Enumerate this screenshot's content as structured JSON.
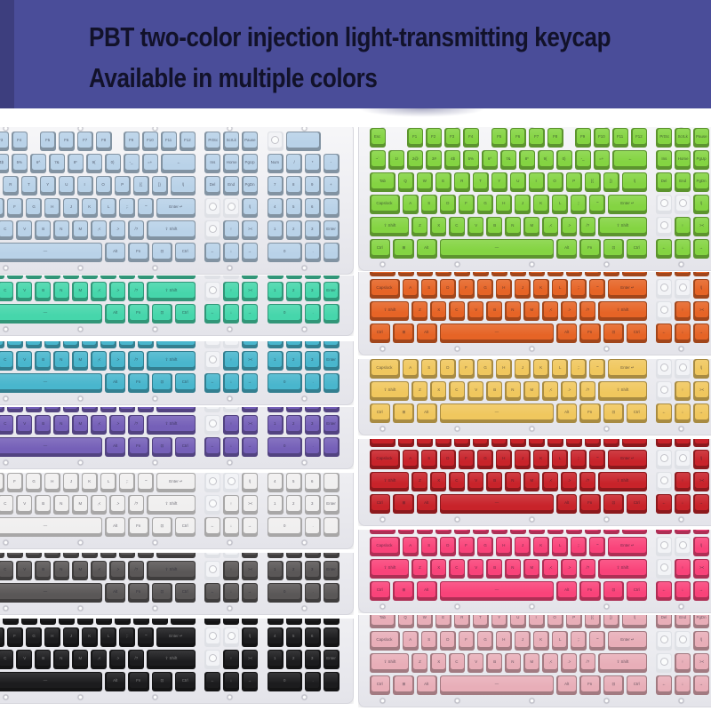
{
  "header": {
    "line1": "PBT two-color injection light-transmitting keycap",
    "line2": "Available in multiple colors",
    "background": "#4a4d99",
    "left_strip_color": "#3d3e7e",
    "text_color": "#12122a"
  },
  "page_background": "#ffffff",
  "tray_color": "#ededf1",
  "keyboards": [
    {
      "id": "light-blue",
      "color": "#b9d2e8",
      "view": "full",
      "column": "left"
    },
    {
      "id": "mint",
      "color": "#46d6ab",
      "view": "partial",
      "column": "left"
    },
    {
      "id": "cyan",
      "color": "#49b6cd",
      "view": "partial",
      "column": "left"
    },
    {
      "id": "purple",
      "color": "#7560b8",
      "view": "partial",
      "column": "left"
    },
    {
      "id": "white",
      "color": "#f0efef",
      "view": "partial",
      "column": "left"
    },
    {
      "id": "gray",
      "color": "#5a5757",
      "view": "partial",
      "column": "left"
    },
    {
      "id": "black",
      "color": "#1c1c1e",
      "view": "partial",
      "column": "left"
    },
    {
      "id": "green",
      "color": "#84d442",
      "view": "full",
      "column": "right"
    },
    {
      "id": "orange",
      "color": "#e66426",
      "view": "partial",
      "column": "right"
    },
    {
      "id": "yellow",
      "color": "#f0c75e",
      "view": "partial",
      "column": "right"
    },
    {
      "id": "red",
      "color": "#c8232a",
      "view": "partial",
      "column": "right"
    },
    {
      "id": "hot-pink",
      "color": "#f9437a",
      "view": "partial",
      "column": "right"
    },
    {
      "id": "pink",
      "color": "#e8aeb8",
      "view": "partial",
      "column": "right"
    }
  ],
  "keyboard_layout": {
    "rows": [
      [
        {
          "l": "Esc"
        },
        {
          "s": 1
        },
        {
          "l": "F1"
        },
        {
          "l": "F2"
        },
        {
          "l": "F3"
        },
        {
          "l": "F4"
        },
        {
          "s": 0.5
        },
        {
          "l": "F5"
        },
        {
          "l": "F6"
        },
        {
          "l": "F7"
        },
        {
          "l": "F8"
        },
        {
          "s": 0.5
        },
        {
          "l": "F9"
        },
        {
          "l": "F10"
        },
        {
          "l": "F11"
        },
        {
          "l": "F12"
        },
        {
          "s": 0.35
        },
        {
          "l": "PrtSc"
        },
        {
          "l": "ScrLk"
        },
        {
          "l": "Pause"
        },
        {
          "s": 0.35
        },
        {
          "b": 1
        },
        {
          "l": "",
          "w": 2
        }
      ],
      [
        {
          "l": "~`"
        },
        {
          "l": "1!"
        },
        {
          "l": "2@"
        },
        {
          "l": "3#"
        },
        {
          "l": "4$"
        },
        {
          "l": "5%"
        },
        {
          "l": "6^"
        },
        {
          "l": "7&"
        },
        {
          "l": "8*"
        },
        {
          "l": "9("
        },
        {
          "l": "0)"
        },
        {
          "l": "-_"
        },
        {
          "l": "=+"
        },
        {
          "l": "←",
          "w": 2
        },
        {
          "s": 0.35
        },
        {
          "l": "Ins"
        },
        {
          "l": "Home"
        },
        {
          "l": "PgUp"
        },
        {
          "s": 0.35
        },
        {
          "l": "Num"
        },
        {
          "l": "/"
        },
        {
          "l": "*"
        },
        {
          "l": "-"
        }
      ],
      [
        {
          "l": "Tab",
          "w": 1.5
        },
        {
          "l": "Q"
        },
        {
          "l": "W"
        },
        {
          "l": "E"
        },
        {
          "l": "R"
        },
        {
          "l": "T"
        },
        {
          "l": "Y"
        },
        {
          "l": "U"
        },
        {
          "l": "I"
        },
        {
          "l": "O"
        },
        {
          "l": "P"
        },
        {
          "l": "[{"
        },
        {
          "l": "]}"
        },
        {
          "l": "\\|",
          "w": 1.5
        },
        {
          "s": 0.35
        },
        {
          "l": "Del"
        },
        {
          "l": "End"
        },
        {
          "l": "PgDn"
        },
        {
          "s": 0.35
        },
        {
          "l": "7"
        },
        {
          "l": "8"
        },
        {
          "l": "9"
        },
        {
          "l": "+"
        }
      ],
      [
        {
          "l": "Capslock",
          "w": 1.75
        },
        {
          "l": "A"
        },
        {
          "l": "S"
        },
        {
          "l": "D"
        },
        {
          "l": "F"
        },
        {
          "l": "G"
        },
        {
          "l": "H"
        },
        {
          "l": "J"
        },
        {
          "l": "K"
        },
        {
          "l": "L"
        },
        {
          "l": ";:"
        },
        {
          "l": "'\""
        },
        {
          "l": "Enter ↵",
          "w": 2.25
        },
        {
          "s": 0.35
        },
        {
          "b": 1
        },
        {
          "b": 1
        },
        {
          "l": "\\|"
        },
        {
          "s": 0.35
        },
        {
          "l": "4"
        },
        {
          "l": "5"
        },
        {
          "l": "6"
        },
        {
          "l": ""
        }
      ],
      [
        {
          "l": "⇧ Shift",
          "w": 2.25
        },
        {
          "l": "Z"
        },
        {
          "l": "X"
        },
        {
          "l": "C"
        },
        {
          "l": "V"
        },
        {
          "l": "B"
        },
        {
          "l": "N"
        },
        {
          "l": "M"
        },
        {
          "l": ",<"
        },
        {
          "l": ".>"
        },
        {
          "l": "/?"
        },
        {
          "l": "⇧ Shift",
          "w": 2.75
        },
        {
          "s": 0.35
        },
        {
          "b": 1
        },
        {
          "l": "↑"
        },
        {
          "l": "><"
        },
        {
          "s": 0.35
        },
        {
          "l": "1"
        },
        {
          "l": "2"
        },
        {
          "l": "3"
        },
        {
          "l": "Enter"
        }
      ],
      [
        {
          "l": "Ctrl",
          "w": 1.25
        },
        {
          "l": "⊞",
          "w": 1.25
        },
        {
          "l": "Alt",
          "w": 1.25
        },
        {
          "l": "—",
          "w": 6.25
        },
        {
          "l": "Alt",
          "w": 1.25
        },
        {
          "l": "Fn",
          "w": 1.25
        },
        {
          "l": "⊡",
          "w": 1.25
        },
        {
          "l": "Ctrl",
          "w": 1.25
        },
        {
          "s": 0.35
        },
        {
          "l": "←"
        },
        {
          "l": "↓"
        },
        {
          "l": "→"
        },
        {
          "s": 0.35
        },
        {
          "l": "0",
          "w": 2
        },
        {
          "l": "."
        },
        {
          "l": ""
        }
      ]
    ]
  }
}
